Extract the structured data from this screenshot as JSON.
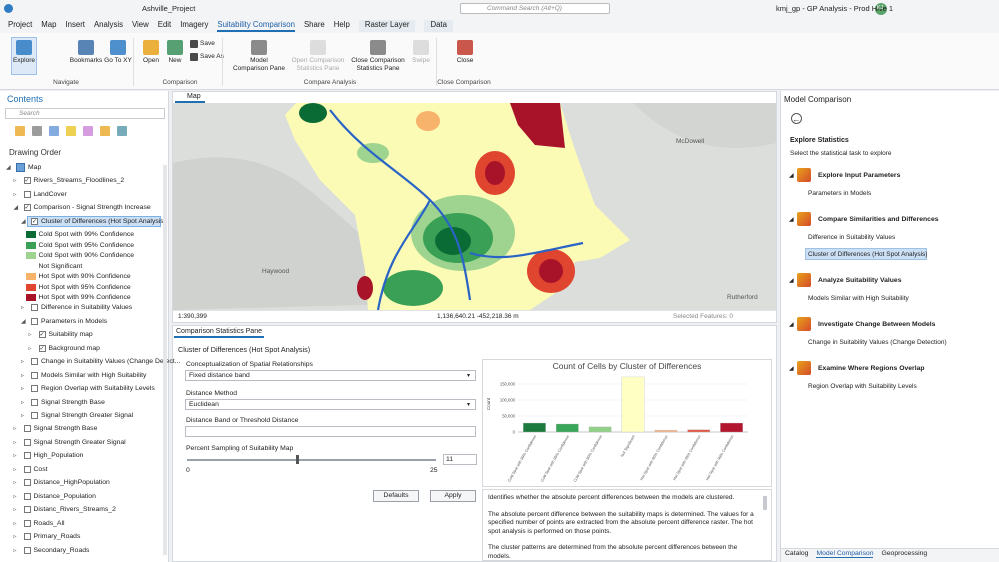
{
  "title_bar": {
    "project": "Ashville_Project",
    "search": "Command Search (Alt+Q)",
    "app": "kmj_gp - GP Analysis - Prod Hive 1",
    "user": "KJ"
  },
  "menu": [
    {
      "label": "Project"
    },
    {
      "label": "Map"
    },
    {
      "label": "Insert"
    },
    {
      "label": "Analysis"
    },
    {
      "label": "View"
    },
    {
      "label": "Edit"
    },
    {
      "label": "Imagery"
    },
    {
      "label": "Suitability Comparison",
      "active": true
    },
    {
      "label": "Share"
    },
    {
      "label": "Help"
    },
    {
      "label": "Raster Layer",
      "contextual": true
    },
    {
      "label": "Data",
      "contextual": true
    }
  ],
  "ribbon": {
    "groups": [
      {
        "name": "Navigate",
        "buttons": [
          {
            "label": "Explore",
            "active": true
          },
          {
            "label": "Bookmarks"
          },
          {
            "label": "Go To XY"
          }
        ]
      },
      {
        "name": "Comparison",
        "buttons": [
          {
            "label": "Open"
          },
          {
            "label": "New"
          },
          {
            "label": "Save",
            "small": true
          },
          {
            "label": "Save As",
            "small": true
          }
        ]
      },
      {
        "name": "Compare Analysis",
        "buttons": [
          {
            "label": "Model Comparison Pane"
          },
          {
            "label": "Open Comparison Statistics Pane",
            "disabled": true
          },
          {
            "label": "Close Comparison Statistics Pane"
          },
          {
            "label": "Swipe",
            "disabled": true
          }
        ]
      },
      {
        "name": "Close Comparison",
        "buttons": [
          {
            "label": "Close"
          }
        ]
      }
    ]
  },
  "contents": {
    "title": "Contents",
    "search": "Search",
    "drawing_order": "Drawing Order",
    "items": [
      {
        "label": "Map",
        "level": 0,
        "expanded": true
      },
      {
        "label": "Rivers_Streams_Floodlines_2",
        "level": 1,
        "checked": true,
        "expanded": false
      },
      {
        "label": "LandCover",
        "level": 1,
        "checked": false,
        "expanded": false
      },
      {
        "label": "Comparison - Signal Strength Increase",
        "level": 1,
        "checked": true,
        "expanded": true
      },
      {
        "label": "Cluster of Differences (Hot Spot Analysis)",
        "level": 2,
        "checked": true,
        "expanded": true,
        "selected": true
      },
      {
        "label": "Cold Spot with 99% Confidence",
        "level": 3,
        "swatch": "#0b6b34"
      },
      {
        "label": "Cold Spot with 95% Confidence",
        "level": 3,
        "swatch": "#39a055"
      },
      {
        "label": "Cold Spot with 90% Confidence",
        "level": 3,
        "swatch": "#9ed48f"
      },
      {
        "label": "Not Significant",
        "level": 3
      },
      {
        "label": "Hot Spot with 90% Confidence",
        "level": 3,
        "swatch": "#f7b26b"
      },
      {
        "label": "Hot Spot with 95% Confidence",
        "level": 3,
        "swatch": "#e0452f"
      },
      {
        "label": "Hot Spot with 99% Confidence",
        "level": 3,
        "swatch": "#a8132a"
      },
      {
        "label": "Difference in Suitability Values",
        "level": 2,
        "checked": false,
        "expanded": false
      },
      {
        "label": "Parameters in Models",
        "level": 2,
        "checked": false,
        "expanded": true
      },
      {
        "label": "Suitability map",
        "level": 3,
        "checked": true,
        "expanded": false
      },
      {
        "label": "Background map",
        "level": 3,
        "checked": true,
        "expanded": false
      },
      {
        "label": "Change in Suitability Values (Change Detect...",
        "level": 2,
        "checked": false,
        "expanded": false
      },
      {
        "label": "Models Similar with High Suitability",
        "level": 2,
        "checked": false,
        "expanded": false
      },
      {
        "label": "Region Overlap with Suitability Levels",
        "level": 2,
        "checked": false,
        "expanded": false
      },
      {
        "label": "Signal Strength Base",
        "level": 2,
        "checked": false,
        "expanded": false
      },
      {
        "label": "Signal Strength Greater Signal",
        "level": 2,
        "checked": false,
        "expanded": false
      },
      {
        "label": "Signal Strength Base",
        "level": 1,
        "checked": false,
        "expanded": false
      },
      {
        "label": "Signal Strength Greater Signal",
        "level": 1,
        "checked": false,
        "expanded": false
      },
      {
        "label": "High_Population",
        "level": 1,
        "checked": false,
        "expanded": false
      },
      {
        "label": "Cost",
        "level": 1,
        "checked": false,
        "expanded": false
      },
      {
        "label": "Distance_HighPopulation",
        "level": 1,
        "checked": false,
        "expanded": false
      },
      {
        "label": "Distance_Population",
        "level": 1,
        "checked": false,
        "expanded": false
      },
      {
        "label": "Distanc_Rivers_Streams_2",
        "level": 1,
        "checked": false,
        "expanded": false
      },
      {
        "label": "Roads_All",
        "level": 1,
        "checked": false,
        "expanded": false
      },
      {
        "label": "Primary_Roads",
        "level": 1,
        "checked": false,
        "expanded": false
      },
      {
        "label": "Secondary_Roads",
        "level": 1,
        "checked": false,
        "expanded": false
      }
    ]
  },
  "map": {
    "tab": "Map",
    "scale": "1:390,399",
    "coordinates": "1,136,640.21 -452,218.36 m",
    "selected": "Selected Features: 0",
    "places": [
      "McDowell",
      "Haywood",
      "Rutherford"
    ]
  },
  "stats_pane": {
    "tab": "Comparison Statistics Pane",
    "heading": "Cluster of Differences (Hot Spot Analysis)",
    "conceptualization": {
      "label": "Conceptualization of Spatial Relationships",
      "value": "Fixed distance band"
    },
    "distance_method": {
      "label": "Distance Method",
      "value": "Euclidean"
    },
    "distance_band": {
      "label": "Distance Band or Threshold Distance"
    },
    "sampling": {
      "label": "Percent Sampling of Suitability Map",
      "min": 0,
      "max": 25,
      "value": 11
    },
    "buttons": [
      "Defaults",
      "Apply"
    ],
    "description": [
      "Identifies whether the absolute percent differences between the models are clustered.",
      "The absolute percent difference between the suitability maps is determined. The values for a specified number of points are extracted from the absolute percent difference raster. The hot spot analysis is performed on those points.",
      "The cluster patterns are determined from the absolute percent differences between the models."
    ]
  },
  "chart_data": {
    "type": "bar",
    "title": "Count of Cells by Cluster of Differences",
    "y_label": "Count",
    "categories": [
      "Cold Spot with 99% Confidence",
      "Cold Spot with 95% Confidence",
      "Cold Spot with 90% Confidence",
      "Not Significant",
      "Hot Spot with 90% Confidence",
      "Hot Spot with 95% Confidence",
      "Hot Spot with 99% Confidence"
    ],
    "values": [
      28000,
      25000,
      16000,
      172000,
      6000,
      7000,
      28000
    ],
    "colors": [
      "#1d7a3f",
      "#3aa65a",
      "#92d08a",
      "#ffffc4",
      "#f2b58f",
      "#e05a45",
      "#b3162f"
    ],
    "ylim": [
      0,
      175000
    ],
    "yticks": [
      0,
      {
        "value": 50000,
        "label": "50,000"
      },
      {
        "value": 100000,
        "label": "100,000"
      },
      {
        "value": 150000,
        "label": "150,000"
      }
    ]
  },
  "model_comparison": {
    "title": "Model Comparison",
    "heading": "Explore Statistics",
    "subheading": "Select the statistical task to explore",
    "sections": [
      {
        "title": "Explore Input Parameters",
        "items": [
          {
            "label": "Parameters in Models"
          }
        ]
      },
      {
        "title": "Compare Similarities and Differences",
        "items": [
          {
            "label": "Difference in Suitability Values"
          },
          {
            "label": "Cluster of Differences (Hot Spot Analysis)",
            "selected": true
          }
        ]
      },
      {
        "title": "Analyze Suitability Values",
        "items": [
          {
            "label": "Models Similar with High Suitability"
          }
        ]
      },
      {
        "title": "Investigate Change Between Models",
        "items": [
          {
            "label": "Change in Suitability Values (Change Detection)"
          }
        ]
      },
      {
        "title": "Examine Where Regions Overlap",
        "items": [
          {
            "label": "Region Overlap with Suitability Levels"
          }
        ]
      }
    ]
  },
  "bottom_tabs": [
    {
      "label": "Catalog"
    },
    {
      "label": "Model Comparison",
      "active": true
    },
    {
      "label": "Geoprocessing"
    }
  ]
}
